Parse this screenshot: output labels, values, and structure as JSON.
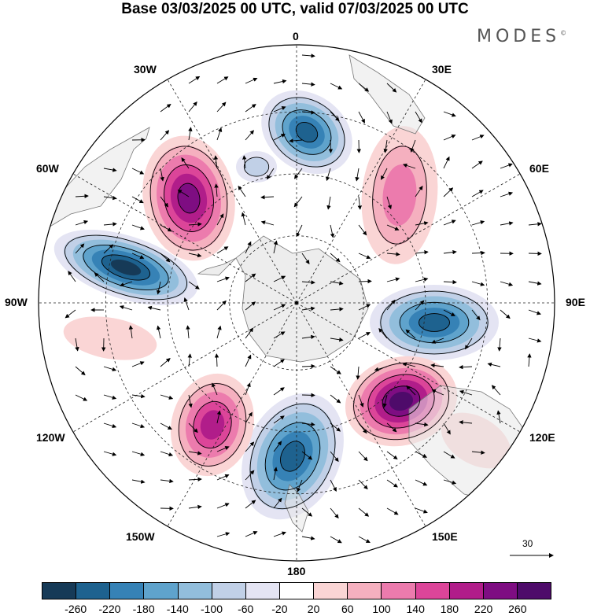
{
  "title": "Base 03/03/2025 00 UTC, valid 07/03/2025 00 UTC",
  "brand": "MODES",
  "brand_mark": "©",
  "lon_labels": {
    "top": "0",
    "top_left": "30W",
    "top_right": "30E",
    "upper_left": "60W",
    "upper_right": "60E",
    "left": "90W",
    "right": "90E",
    "lower_left": "120W",
    "lower_right": "120E",
    "bottom_left": "150W",
    "bottom_right": "150E",
    "bottom": "180"
  },
  "colorbar": {
    "colors": [
      "#163a57",
      "#1e628f",
      "#3682b6",
      "#5fa3cc",
      "#92bedc",
      "#c1d0e7",
      "#e4e4f3",
      "#ffffff",
      "#fad5d5",
      "#f5b0bf",
      "#ec7bad",
      "#dc4599",
      "#b11d8a",
      "#7e0d82",
      "#4e0b6a"
    ],
    "ticks": [
      "-260",
      "-220",
      "-180",
      "-140",
      "-100",
      "-60",
      "-20",
      "20",
      "60",
      "100",
      "140",
      "180",
      "220",
      "260"
    ]
  },
  "reference_vector": {
    "label": "30"
  },
  "map_data": {
    "projection": "south polar stereographic",
    "anomalies": [
      {
        "region": "South Atlantic",
        "sign": "negative",
        "peak": -230
      },
      {
        "region": "Southwest Atlantic",
        "sign": "positive",
        "peak": 240
      },
      {
        "region": "Drake Passage / Southeast Pacific",
        "sign": "negative",
        "peak": -260
      },
      {
        "region": "Southern Africa",
        "sign": "positive",
        "peak": 140
      },
      {
        "region": "South Indian Ocean",
        "sign": "negative",
        "peak": -250
      },
      {
        "region": "South of Australia",
        "sign": "positive",
        "peak": 280
      },
      {
        "region": "Tasman Sea / New Zealand",
        "sign": "negative",
        "peak": -230
      },
      {
        "region": "South Pacific 150W",
        "sign": "positive",
        "peak": 220
      }
    ]
  }
}
